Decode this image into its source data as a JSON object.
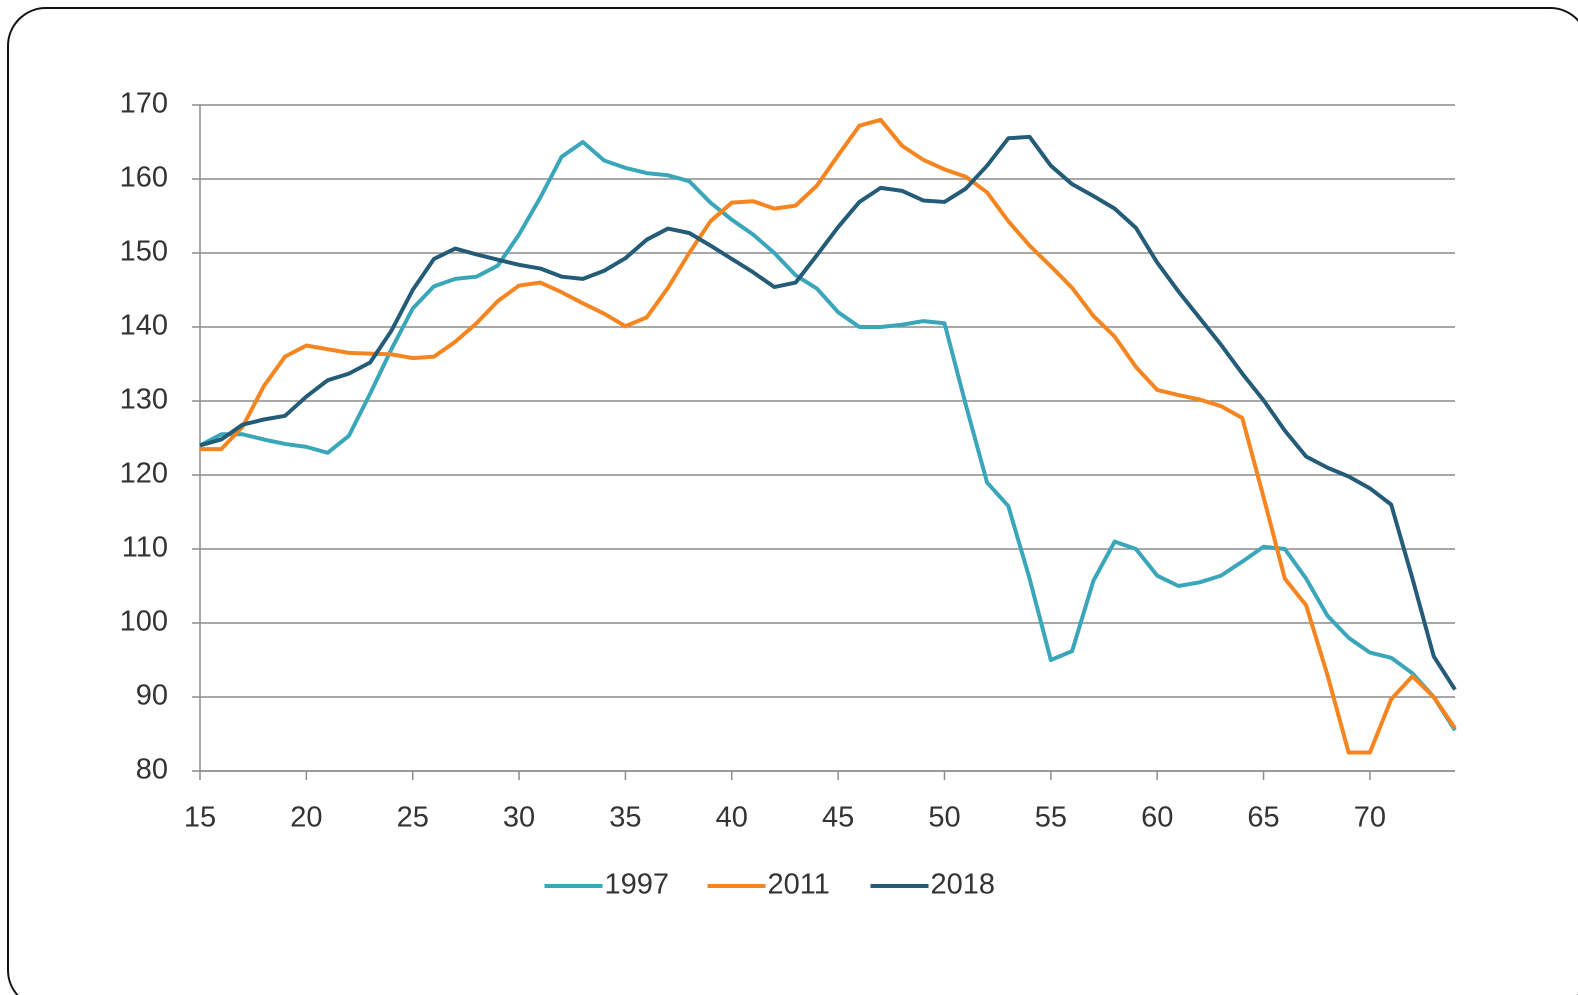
{
  "chart_data": {
    "type": "line",
    "x": [
      15,
      16,
      17,
      18,
      19,
      20,
      21,
      22,
      23,
      24,
      25,
      26,
      27,
      28,
      29,
      30,
      31,
      32,
      33,
      34,
      35,
      36,
      37,
      38,
      39,
      40,
      41,
      42,
      43,
      44,
      45,
      46,
      47,
      48,
      49,
      50,
      51,
      52,
      53,
      54,
      55,
      56,
      57,
      58,
      59,
      60,
      61,
      62,
      63,
      64,
      65,
      66,
      67,
      68,
      69,
      70,
      71,
      72,
      73,
      74
    ],
    "series": [
      {
        "name": "1997",
        "color": "#3aa6b9",
        "values": [
          124,
          125.5,
          125.5,
          124.8,
          124.2,
          123.8,
          123,
          125.3,
          131,
          137,
          142.5,
          145.5,
          146.5,
          146.8,
          148.3,
          152.5,
          157.5,
          163,
          165,
          162.5,
          161.5,
          160.8,
          160.5,
          159.7,
          156.8,
          154.5,
          152.5,
          150,
          147,
          145.2,
          142,
          140,
          140,
          140.3,
          140.8,
          140.5,
          129.5,
          119,
          115.8,
          106,
          95,
          96.2,
          105.7,
          111,
          110,
          106.4,
          105,
          105.5,
          106.4,
          108.3,
          110.3,
          110,
          106,
          101,
          98,
          96,
          95.3,
          93.2,
          90,
          85.5
        ]
      },
      {
        "name": "2011",
        "color": "#f6851f",
        "values": [
          123.5,
          123.5,
          126.5,
          132,
          136,
          137.5,
          137,
          136.5,
          136.4,
          136.3,
          135.8,
          136,
          138,
          140.5,
          143.5,
          145.6,
          146,
          144.7,
          143.2,
          141.8,
          140.1,
          141.3,
          145.3,
          150,
          154.3,
          156.8,
          157,
          156,
          156.4,
          159.1,
          163.2,
          167.2,
          168,
          164.5,
          162.6,
          161.3,
          160.3,
          158.2,
          154.3,
          151,
          148.2,
          145.3,
          141.5,
          138.7,
          134.6,
          131.5,
          130.8,
          130.2,
          129.3,
          127.7,
          117,
          106,
          102.4,
          93,
          82.5,
          82.5,
          89.7,
          92.8,
          90,
          85.8
        ]
      },
      {
        "name": "2018",
        "color": "#245c78",
        "values": [
          124,
          124.8,
          126.8,
          127.5,
          128,
          130.6,
          132.8,
          133.7,
          135.2,
          139.5,
          145,
          149.2,
          150.6,
          149.8,
          149.1,
          148.4,
          147.9,
          146.8,
          146.5,
          147.6,
          149.3,
          151.8,
          153.3,
          152.7,
          151,
          149.2,
          147.4,
          145.4,
          146,
          149.7,
          153.5,
          156.9,
          158.8,
          158.4,
          157.1,
          156.9,
          158.7,
          161.8,
          165.5,
          165.7,
          161.8,
          159.3,
          157.7,
          156,
          153.4,
          148.7,
          144.8,
          141.2,
          137.6,
          133.7,
          130.1,
          126,
          122.5,
          121,
          119.8,
          118.2,
          116,
          106,
          95.5,
          91
        ]
      }
    ],
    "xlim": [
      15,
      74
    ],
    "xticks": [
      15,
      20,
      25,
      30,
      35,
      40,
      45,
      50,
      55,
      60,
      65,
      70
    ],
    "ylim": [
      80,
      170
    ],
    "yticks": [
      80,
      90,
      100,
      110,
      120,
      130,
      140,
      150,
      160,
      170
    ],
    "grid": true,
    "legend": "bottom"
  }
}
